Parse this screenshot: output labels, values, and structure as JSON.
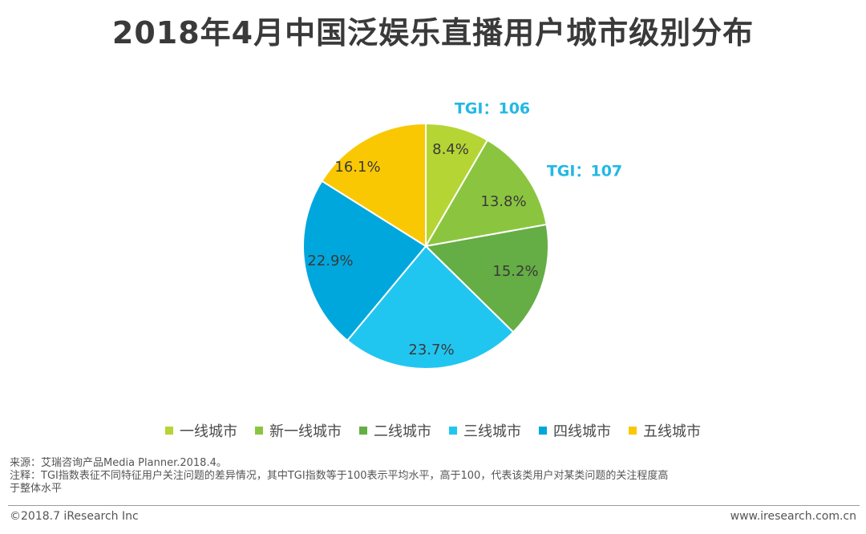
{
  "title": "2018年4月中国泛娱乐直播用户城市级别分布",
  "chart_data": {
    "type": "pie",
    "title": "2018年4月中国泛娱乐直播用户城市级别分布",
    "categories": [
      "一线城市",
      "新一线城市",
      "二线城市",
      "三线城市",
      "四线城市",
      "五线城市"
    ],
    "values": [
      8.4,
      13.8,
      15.2,
      23.7,
      22.9,
      16.1
    ],
    "value_labels": [
      "8.4%",
      "13.8%",
      "15.2%",
      "23.7%",
      "22.9%",
      "16.1%"
    ],
    "colors": [
      "#b5d534",
      "#8bc540",
      "#65ad45",
      "#21c6f0",
      "#00a7dd",
      "#f9c802"
    ],
    "annotations": [
      {
        "category": "一线城市",
        "text": "TGI：106"
      },
      {
        "category": "新一线城市",
        "text": "TGI：107"
      }
    ],
    "start_angle": "top, clockwise",
    "legend_position": "bottom"
  },
  "footer": {
    "source": "来源：艾瑞咨询产品Media Planner.2018.4。",
    "note_line1": "注释：TGI指数表征不同特征用户关注问题的差异情况，其中TGI指数等于100表示平均水平，高于100，代表该类用户对某类问题的关注程度高",
    "note_line2": "于整体水平",
    "copyright": "©2018.7 iResearch Inc",
    "website": "www.iresearch.com.cn"
  }
}
